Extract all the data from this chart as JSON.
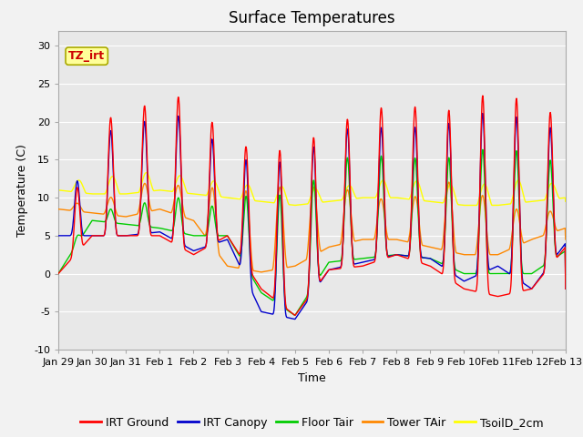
{
  "title": "Surface Temperatures",
  "xlabel": "Time",
  "ylabel": "Temperature (C)",
  "ylim": [
    -10,
    32
  ],
  "yticks": [
    -10,
    -5,
    0,
    5,
    10,
    15,
    20,
    25,
    30
  ],
  "date_labels": [
    "Jan 29",
    "Jan 30",
    "Jan 31",
    "Feb 1",
    "Feb 2",
    "Feb 3",
    "Feb 4",
    "Feb 5",
    "Feb 6",
    "Feb 7",
    "Feb 8",
    "Feb 9",
    "Feb 10",
    "Feb 11",
    "Feb 12",
    "Feb 13"
  ],
  "legend_entries": [
    "IRT Ground",
    "IRT Canopy",
    "Floor Tair",
    "Tower TAir",
    "TsoilD_2cm"
  ],
  "line_colors": [
    "#ff0000",
    "#0000cc",
    "#00cc00",
    "#ff8800",
    "#ffff00"
  ],
  "annotation_text": "TZ_irt",
  "annotation_color": "#cc0000",
  "annotation_bg": "#ffff99",
  "annotation_border": "#aaaa00",
  "plot_bg_color": "#e8e8e8",
  "grid_color": "#ffffff",
  "fig_bg_color": "#f2f2f2",
  "title_fontsize": 12,
  "axis_fontsize": 9,
  "tick_fontsize": 8,
  "legend_fontsize": 9
}
